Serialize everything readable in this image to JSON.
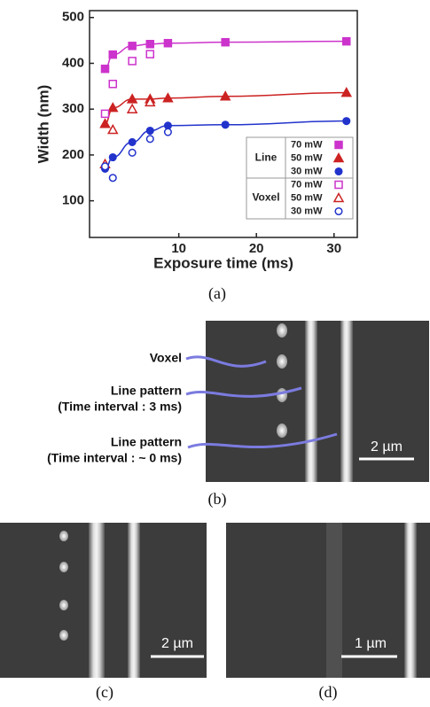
{
  "chart_data": {
    "type": "scatter",
    "xlabel": "Exposure time (ms)",
    "ylabel": "Width (nm)",
    "x": [
      0.5,
      1.5,
      4,
      6.3,
      8.6,
      16,
      31.6
    ],
    "xlim": [
      -1.5,
      33
    ],
    "xticks": [
      10,
      20,
      30
    ],
    "ylim": [
      20,
      515
    ],
    "yticks": [
      100,
      200,
      300,
      400,
      500
    ],
    "legend_groups": [
      "Line",
      "Voxel"
    ],
    "series": [
      {
        "name": "70 mW",
        "group": 0,
        "marker": "square",
        "filled": true,
        "fit": true,
        "color": "#cc33cc",
        "values": [
          388,
          419,
          438,
          442,
          444,
          446,
          448
        ]
      },
      {
        "name": "50 mW",
        "group": 0,
        "marker": "triangle",
        "filled": true,
        "fit": true,
        "color": "#cc2222",
        "values": [
          268,
          303,
          322,
          322,
          324,
          328,
          336
        ]
      },
      {
        "name": "30 mW",
        "group": 0,
        "marker": "circle",
        "filled": true,
        "fit": true,
        "color": "#2233cc",
        "values": [
          170,
          195,
          228,
          253,
          264,
          266,
          274
        ]
      },
      {
        "name": "70 mW",
        "group": 1,
        "marker": "square",
        "filled": false,
        "fit": false,
        "color": "#cc33cc",
        "values": [
          290,
          355,
          405,
          420,
          null,
          null,
          null
        ]
      },
      {
        "name": "50 mW",
        "group": 1,
        "marker": "triangle",
        "filled": false,
        "fit": false,
        "color": "#cc2222",
        "values": [
          180,
          255,
          300,
          315,
          null,
          null,
          null
        ]
      },
      {
        "name": "30 mW",
        "group": 1,
        "marker": "circle",
        "filled": false,
        "fit": false,
        "color": "#2233cc",
        "values": [
          175,
          150,
          205,
          235,
          250,
          null,
          null
        ]
      }
    ]
  },
  "captions": [
    "(a)",
    "(b)",
    "(c)",
    "(d)"
  ],
  "panel_b": {
    "annotations": [
      "Voxel",
      "Line pattern",
      "(Time interval : 3 ms)",
      "Line pattern",
      "(Time interval : ~ 0 ms)"
    ],
    "scale": "2 µm"
  },
  "panel_c": {
    "scale": "2 µm"
  },
  "panel_d": {
    "scale": "1 µm"
  }
}
